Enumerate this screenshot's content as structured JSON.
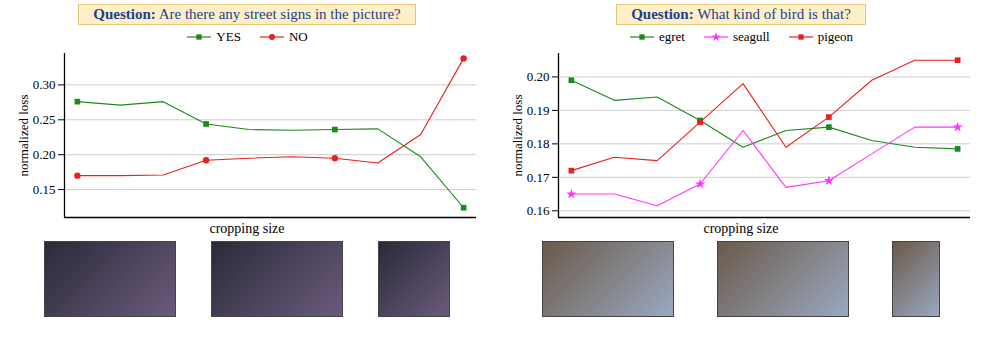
{
  "chart_data": [
    {
      "type": "line",
      "title": "Question: Are there any street signs in the picture?",
      "x_label": "cropping size",
      "y_label": "normalized loss",
      "x": [
        0,
        1,
        2,
        3,
        4,
        5,
        6,
        7,
        8,
        9
      ],
      "xlim": [
        -0.3,
        9.3
      ],
      "xticks": [],
      "ylim": [
        0.11,
        0.345
      ],
      "yticks": [
        0.15,
        {
          "value": 0.2,
          "label": "0.20"
        },
        0.25,
        {
          "value": 0.3,
          "label": "0.30"
        }
      ],
      "tick_labels": "y",
      "grid": true,
      "legend": "top",
      "series": [
        {
          "name": "YES",
          "color": "#1a8a1a",
          "marker": "square",
          "values": [
            0.276,
            0.271,
            0.276,
            0.244,
            0.236,
            0.235,
            0.236,
            0.237,
            0.197,
            0.124
          ]
        },
        {
          "name": "NO",
          "color": "#e8201f",
          "marker": "circle",
          "values": [
            0.17,
            0.17,
            0.171,
            0.192,
            0.195,
            0.197,
            0.195,
            0.188,
            0.229,
            0.338
          ]
        }
      ]
    },
    {
      "type": "line",
      "title": "Question: What kind of bird is that?",
      "x_label": "cropping size",
      "y_label": "normalized loss",
      "x": [
        0,
        1,
        2,
        3,
        4,
        5,
        6,
        7,
        8,
        9
      ],
      "xlim": [
        -0.3,
        9.3
      ],
      "xticks": [],
      "ylim": [
        0.158,
        0.207
      ],
      "yticks": [
        0.16,
        0.17,
        0.18,
        0.19,
        {
          "value": 0.2,
          "label": "0.20"
        }
      ],
      "tick_labels": "y",
      "grid": true,
      "legend": "top",
      "series": [
        {
          "name": "egret",
          "color": "#1a8a1a",
          "marker": "square",
          "values": [
            0.199,
            0.193,
            0.194,
            0.187,
            0.179,
            0.184,
            0.185,
            0.181,
            0.179,
            0.1785
          ]
        },
        {
          "name": "seagull",
          "color": "#ff33ff",
          "marker": "star",
          "values": [
            0.165,
            0.165,
            0.1615,
            0.168,
            0.184,
            0.167,
            0.169,
            0.177,
            0.185,
            0.185
          ]
        },
        {
          "name": "pigeon",
          "color": "#e8201f",
          "marker": "square",
          "values": [
            0.172,
            0.176,
            0.175,
            0.1865,
            0.198,
            0.179,
            0.188,
            0.199,
            0.205,
            0.205
          ]
        }
      ]
    }
  ]
}
